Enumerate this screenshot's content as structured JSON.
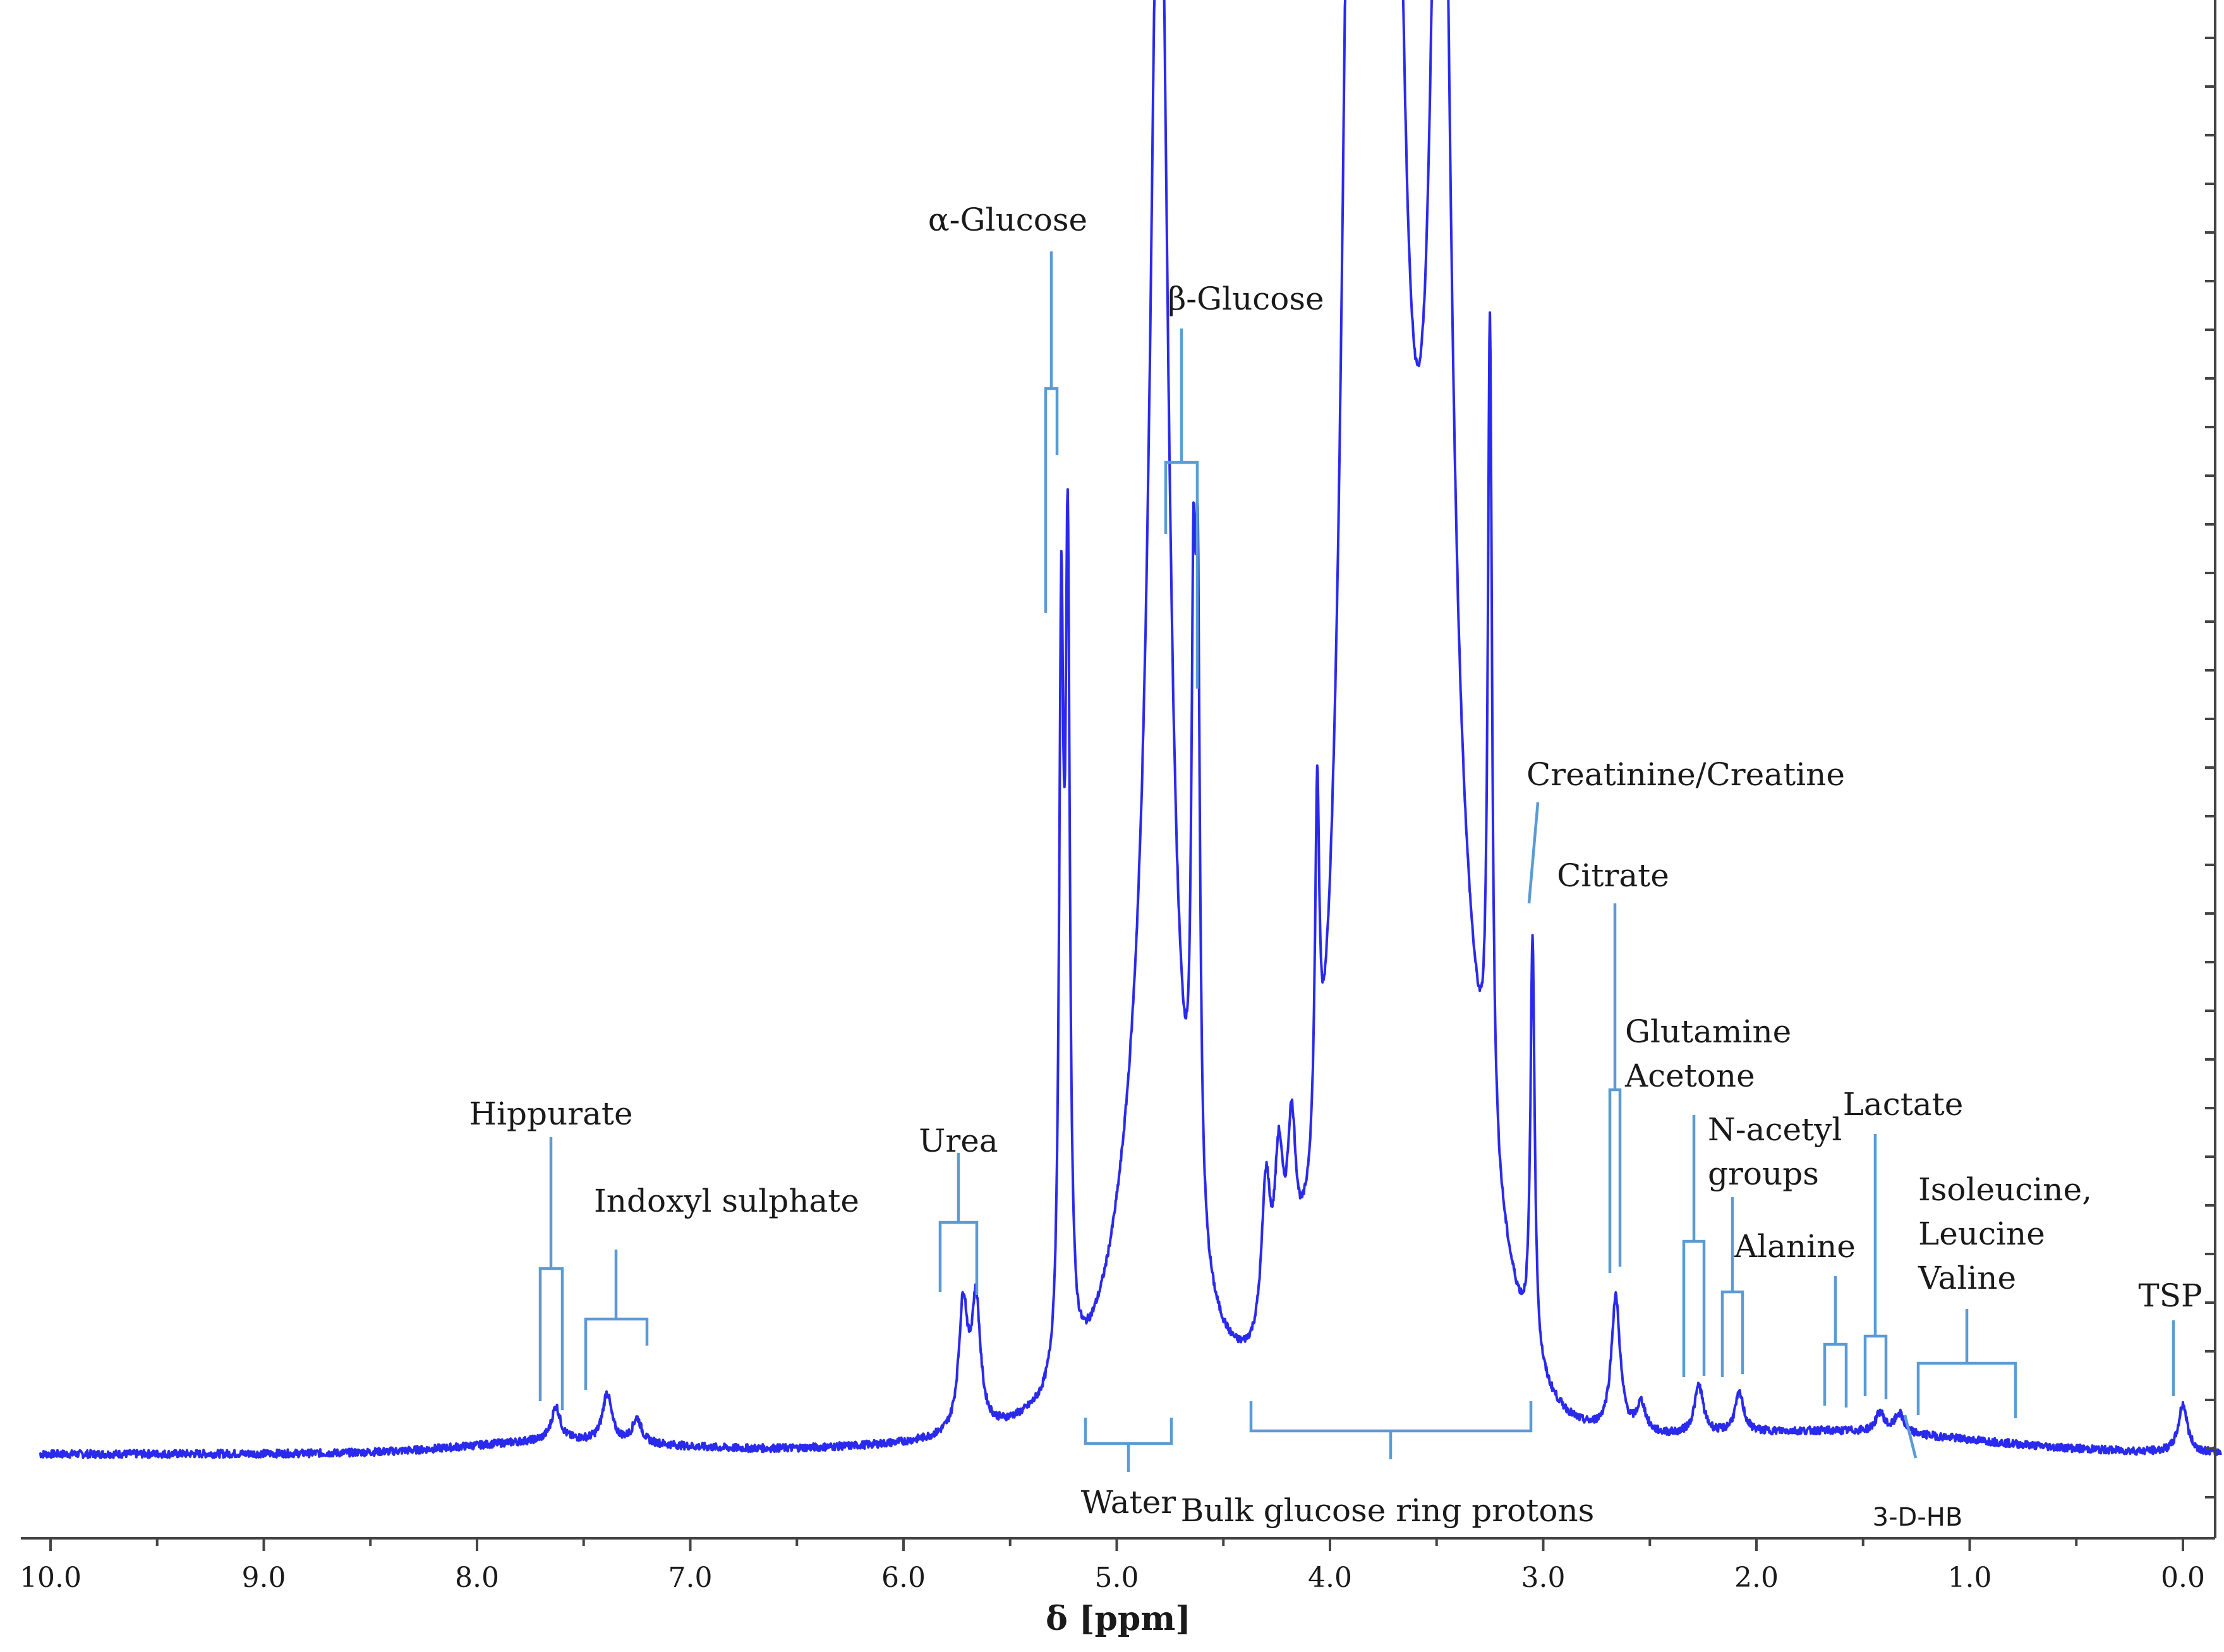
{
  "chart_data": {
    "type": "line",
    "title": "",
    "xlabel": "δ [ppm]",
    "ylabel": "",
    "xlim": [
      10.0,
      -0.2
    ],
    "x_reversed": true,
    "grid": false,
    "legend": "none",
    "xticks": [
      "10.0",
      "9.0",
      "8.0",
      "7.0",
      "6.0",
      "5.0",
      "4.0",
      "3.0",
      "2.0",
      "1.0",
      "0.0"
    ],
    "spectrum_color": "#2a2aee",
    "annotation_color": "#5b9bd5",
    "peaks": [
      {
        "ppm": 7.63,
        "height": 0.035
      },
      {
        "ppm": 7.39,
        "height": 0.05
      },
      {
        "ppm": 7.25,
        "height": 0.025
      },
      {
        "ppm": 5.72,
        "height": 0.13
      },
      {
        "ppm": 5.66,
        "height": 0.13
      },
      {
        "ppm": 5.26,
        "height": 0.75
      },
      {
        "ppm": 5.23,
        "height": 0.82
      },
      {
        "ppm": 4.8,
        "height": 1.5
      },
      {
        "ppm": 4.64,
        "height": 0.55
      },
      {
        "ppm": 4.62,
        "height": 0.6
      },
      {
        "ppm": 4.3,
        "height": 0.16
      },
      {
        "ppm": 4.24,
        "height": 0.16
      },
      {
        "ppm": 4.18,
        "height": 0.17
      },
      {
        "ppm": 4.06,
        "height": 0.36
      },
      {
        "ppm": 3.9,
        "height": 1.4
      },
      {
        "ppm": 3.76,
        "height": 1.4
      },
      {
        "ppm": 3.72,
        "height": 1.4
      },
      {
        "ppm": 3.48,
        "height": 1.4
      },
      {
        "ppm": 3.25,
        "height": 0.85
      },
      {
        "ppm": 3.05,
        "height": 0.43
      },
      {
        "ppm": 2.66,
        "height": 0.14
      },
      {
        "ppm": 2.54,
        "height": 0.03
      },
      {
        "ppm": 2.27,
        "height": 0.05
      },
      {
        "ppm": 2.08,
        "height": 0.04
      },
      {
        "ppm": 1.42,
        "height": 0.02
      },
      {
        "ppm": 1.33,
        "height": 0.02
      },
      {
        "ppm": 0.0,
        "height": 0.05
      }
    ],
    "annotations": [
      {
        "label": "Hippurate",
        "lines": [
          "Hippurate"
        ]
      },
      {
        "label": "Indoxyl sulphate",
        "lines": [
          "Indoxyl sulphate"
        ]
      },
      {
        "label": "Urea",
        "lines": [
          "Urea"
        ]
      },
      {
        "label": "α-Glucose",
        "lines": [
          "α-Glucose"
        ]
      },
      {
        "label": "β-Glucose",
        "lines": [
          "β-Glucose"
        ]
      },
      {
        "label": "Water",
        "lines": [
          "Water"
        ]
      },
      {
        "label": "Bulk glucose ring protons",
        "lines": [
          "Bulk glucose ring protons"
        ]
      },
      {
        "label": "Creatinine/Creatine",
        "lines": [
          "Creatinine/Creatine"
        ]
      },
      {
        "label": "Citrate",
        "lines": [
          "Citrate"
        ]
      },
      {
        "label": "Glutamine Acetone",
        "lines": [
          "Glutamine",
          "Acetone"
        ]
      },
      {
        "label": "N-acetyl groups",
        "lines": [
          "N-acetyl",
          "groups"
        ]
      },
      {
        "label": "Alanine",
        "lines": [
          "Alanine"
        ]
      },
      {
        "label": "Lactate",
        "lines": [
          "Lactate"
        ]
      },
      {
        "label": "Isoleucine, Leucine Valine",
        "lines": [
          "Isoleucine,",
          "Leucine",
          "Valine"
        ]
      },
      {
        "label": "TSP",
        "lines": [
          "TSP"
        ]
      },
      {
        "label": "3-D-HB",
        "lines": [
          "3-D-HB"
        ]
      }
    ]
  }
}
